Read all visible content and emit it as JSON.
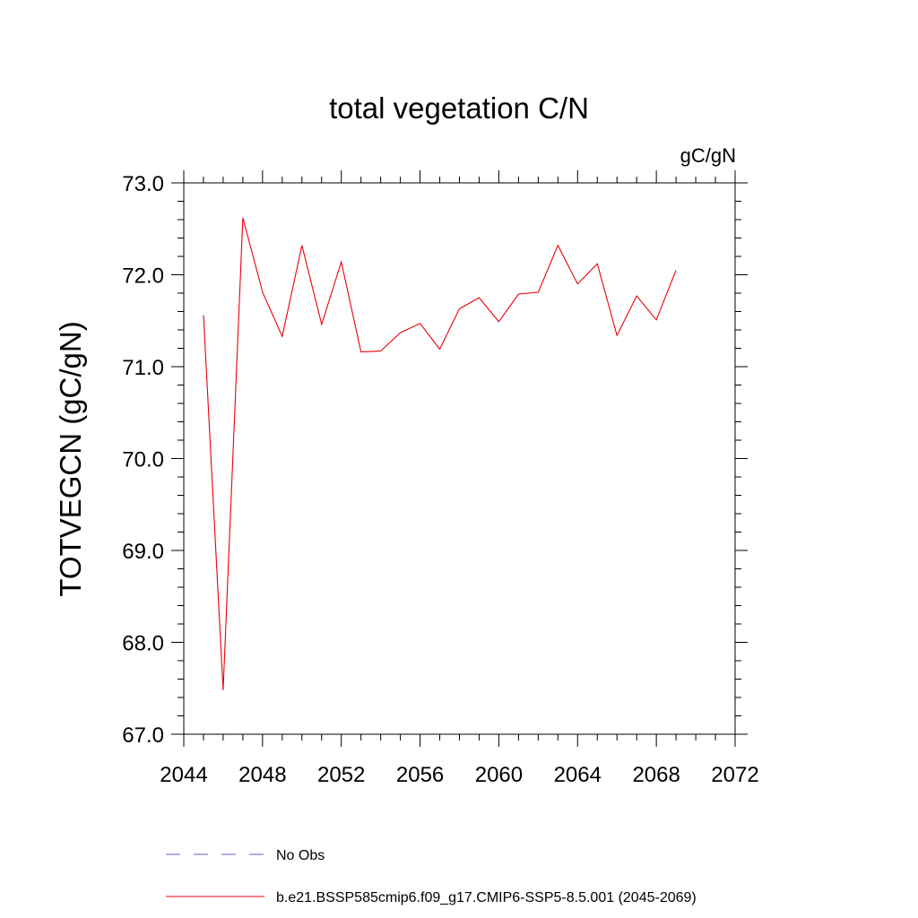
{
  "chart_data": {
    "type": "line",
    "title": "total vegetation C/N",
    "units_label": "gC/gN",
    "xlabel": "",
    "ylabel": "TOTVEGCN  (gC/gN)",
    "xlim": [
      2044,
      2072
    ],
    "ylim": [
      67.0,
      73.0
    ],
    "x_ticks": [
      2044,
      2048,
      2052,
      2056,
      2060,
      2064,
      2068,
      2072
    ],
    "x_tick_labels": [
      "2044",
      "2048",
      "2052",
      "2056",
      "2060",
      "2064",
      "2068",
      "2072"
    ],
    "y_ticks": [
      67.0,
      68.0,
      69.0,
      70.0,
      71.0,
      72.0,
      73.0
    ],
    "y_tick_labels": [
      "67.0",
      "68.0",
      "69.0",
      "70.0",
      "71.0",
      "72.0",
      "73.0"
    ],
    "grid": false,
    "legend_position": "bottom",
    "legend": [
      {
        "name": "No Obs",
        "color": "#6a5acd",
        "style": "dashed"
      },
      {
        "name": "b.e21.BSSP585cmip6.f09_g17.CMIP6-SSP5-8.5.001 (2045-2069)",
        "color": "#e8000b",
        "style": "solid"
      }
    ],
    "series": [
      {
        "name": "b.e21.BSSP585cmip6.f09_g17.CMIP6-SSP5-8.5.001 (2045-2069)",
        "color": "#e8000b",
        "x": [
          2045,
          2046,
          2047,
          2048,
          2049,
          2050,
          2051,
          2052,
          2053,
          2054,
          2055,
          2056,
          2057,
          2058,
          2059,
          2060,
          2061,
          2062,
          2063,
          2064,
          2065,
          2066,
          2067,
          2068,
          2069
        ],
        "y": [
          71.56,
          67.48,
          72.62,
          71.81,
          71.33,
          72.32,
          71.46,
          72.14,
          71.16,
          71.17,
          71.37,
          71.47,
          71.19,
          71.63,
          71.75,
          71.49,
          71.79,
          71.81,
          72.32,
          71.9,
          72.12,
          71.34,
          71.77,
          71.51,
          72.05
        ]
      }
    ]
  }
}
